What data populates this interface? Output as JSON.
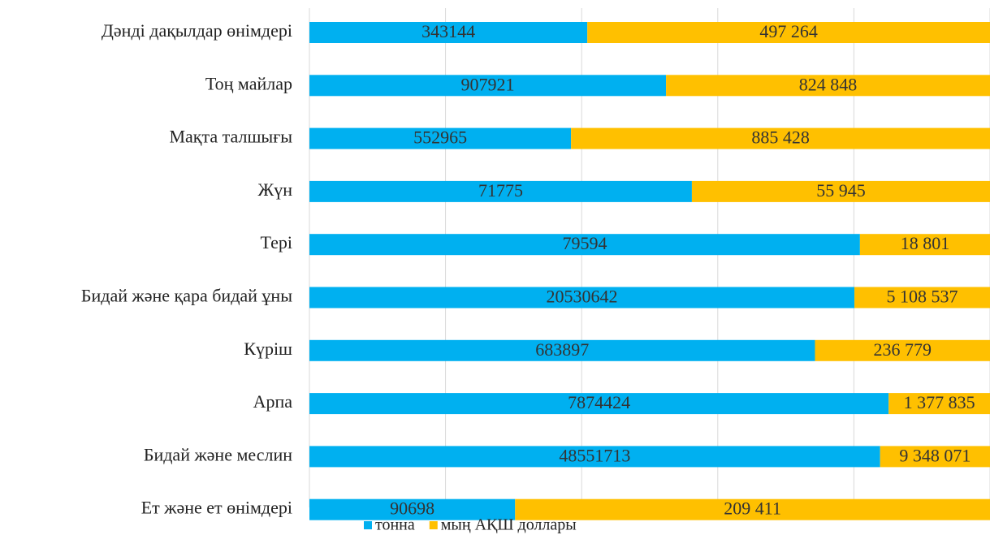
{
  "chart_data": {
    "type": "bar",
    "orientation": "horizontal",
    "stacked": "percent",
    "categories": [
      "Дәнді дақылдар өнімдері",
      "Тоң майлар",
      "Мақта талшығы",
      "Жүн",
      "Тері",
      "Бидай және қара бидай ұны",
      "Күріш",
      "Арпа",
      "Бидай және меслин",
      "Ет және ет өнімдері"
    ],
    "series": [
      {
        "name": "тонна",
        "color": "#00b0f0",
        "values": [
          343144,
          907921,
          552965,
          71775,
          79594,
          20530642,
          683897,
          7874424,
          48551713,
          90698
        ]
      },
      {
        "name": "мың АҚШ доллары",
        "color": "#ffc000",
        "values": [
          497264,
          824848,
          885428,
          55945,
          18801,
          5108537,
          236779,
          1377835,
          9348071,
          209411
        ],
        "value_labels": [
          "497 264",
          "824 848",
          "885 428",
          "55 945",
          "18 801",
          "5 108 537",
          "236 779",
          "1 377 835",
          "9 348 071",
          "209 411"
        ]
      }
    ],
    "xlim": [
      0,
      100
    ],
    "xticks": [
      0,
      20,
      40,
      60,
      80,
      100
    ],
    "grid": true,
    "legend": "bottom"
  }
}
